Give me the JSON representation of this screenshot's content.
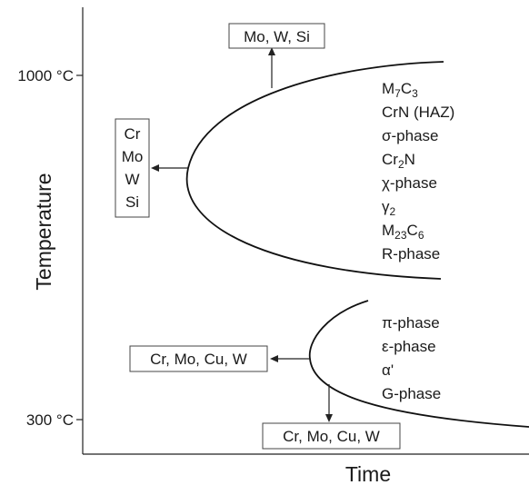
{
  "axes": {
    "x_label": "Time",
    "y_label": "Temperature",
    "y_ticks": [
      "1000 °C",
      "300 °C"
    ]
  },
  "upper_curve": {
    "phases": [
      "M7C3",
      "CrN (HAZ)",
      "σ-phase",
      "Cr2N",
      "χ-phase",
      "γ2",
      "M23C6",
      "R-phase"
    ],
    "top_box": "Mo, W, Si",
    "left_box": [
      "Cr",
      "Mo",
      "W",
      "Si"
    ]
  },
  "lower_curve": {
    "phases": [
      "π-phase",
      "ε-phase",
      "α'",
      "G-phase"
    ],
    "left_box": "Cr, Mo, Cu, W",
    "bottom_box": "Cr, Mo, Cu, W"
  }
}
